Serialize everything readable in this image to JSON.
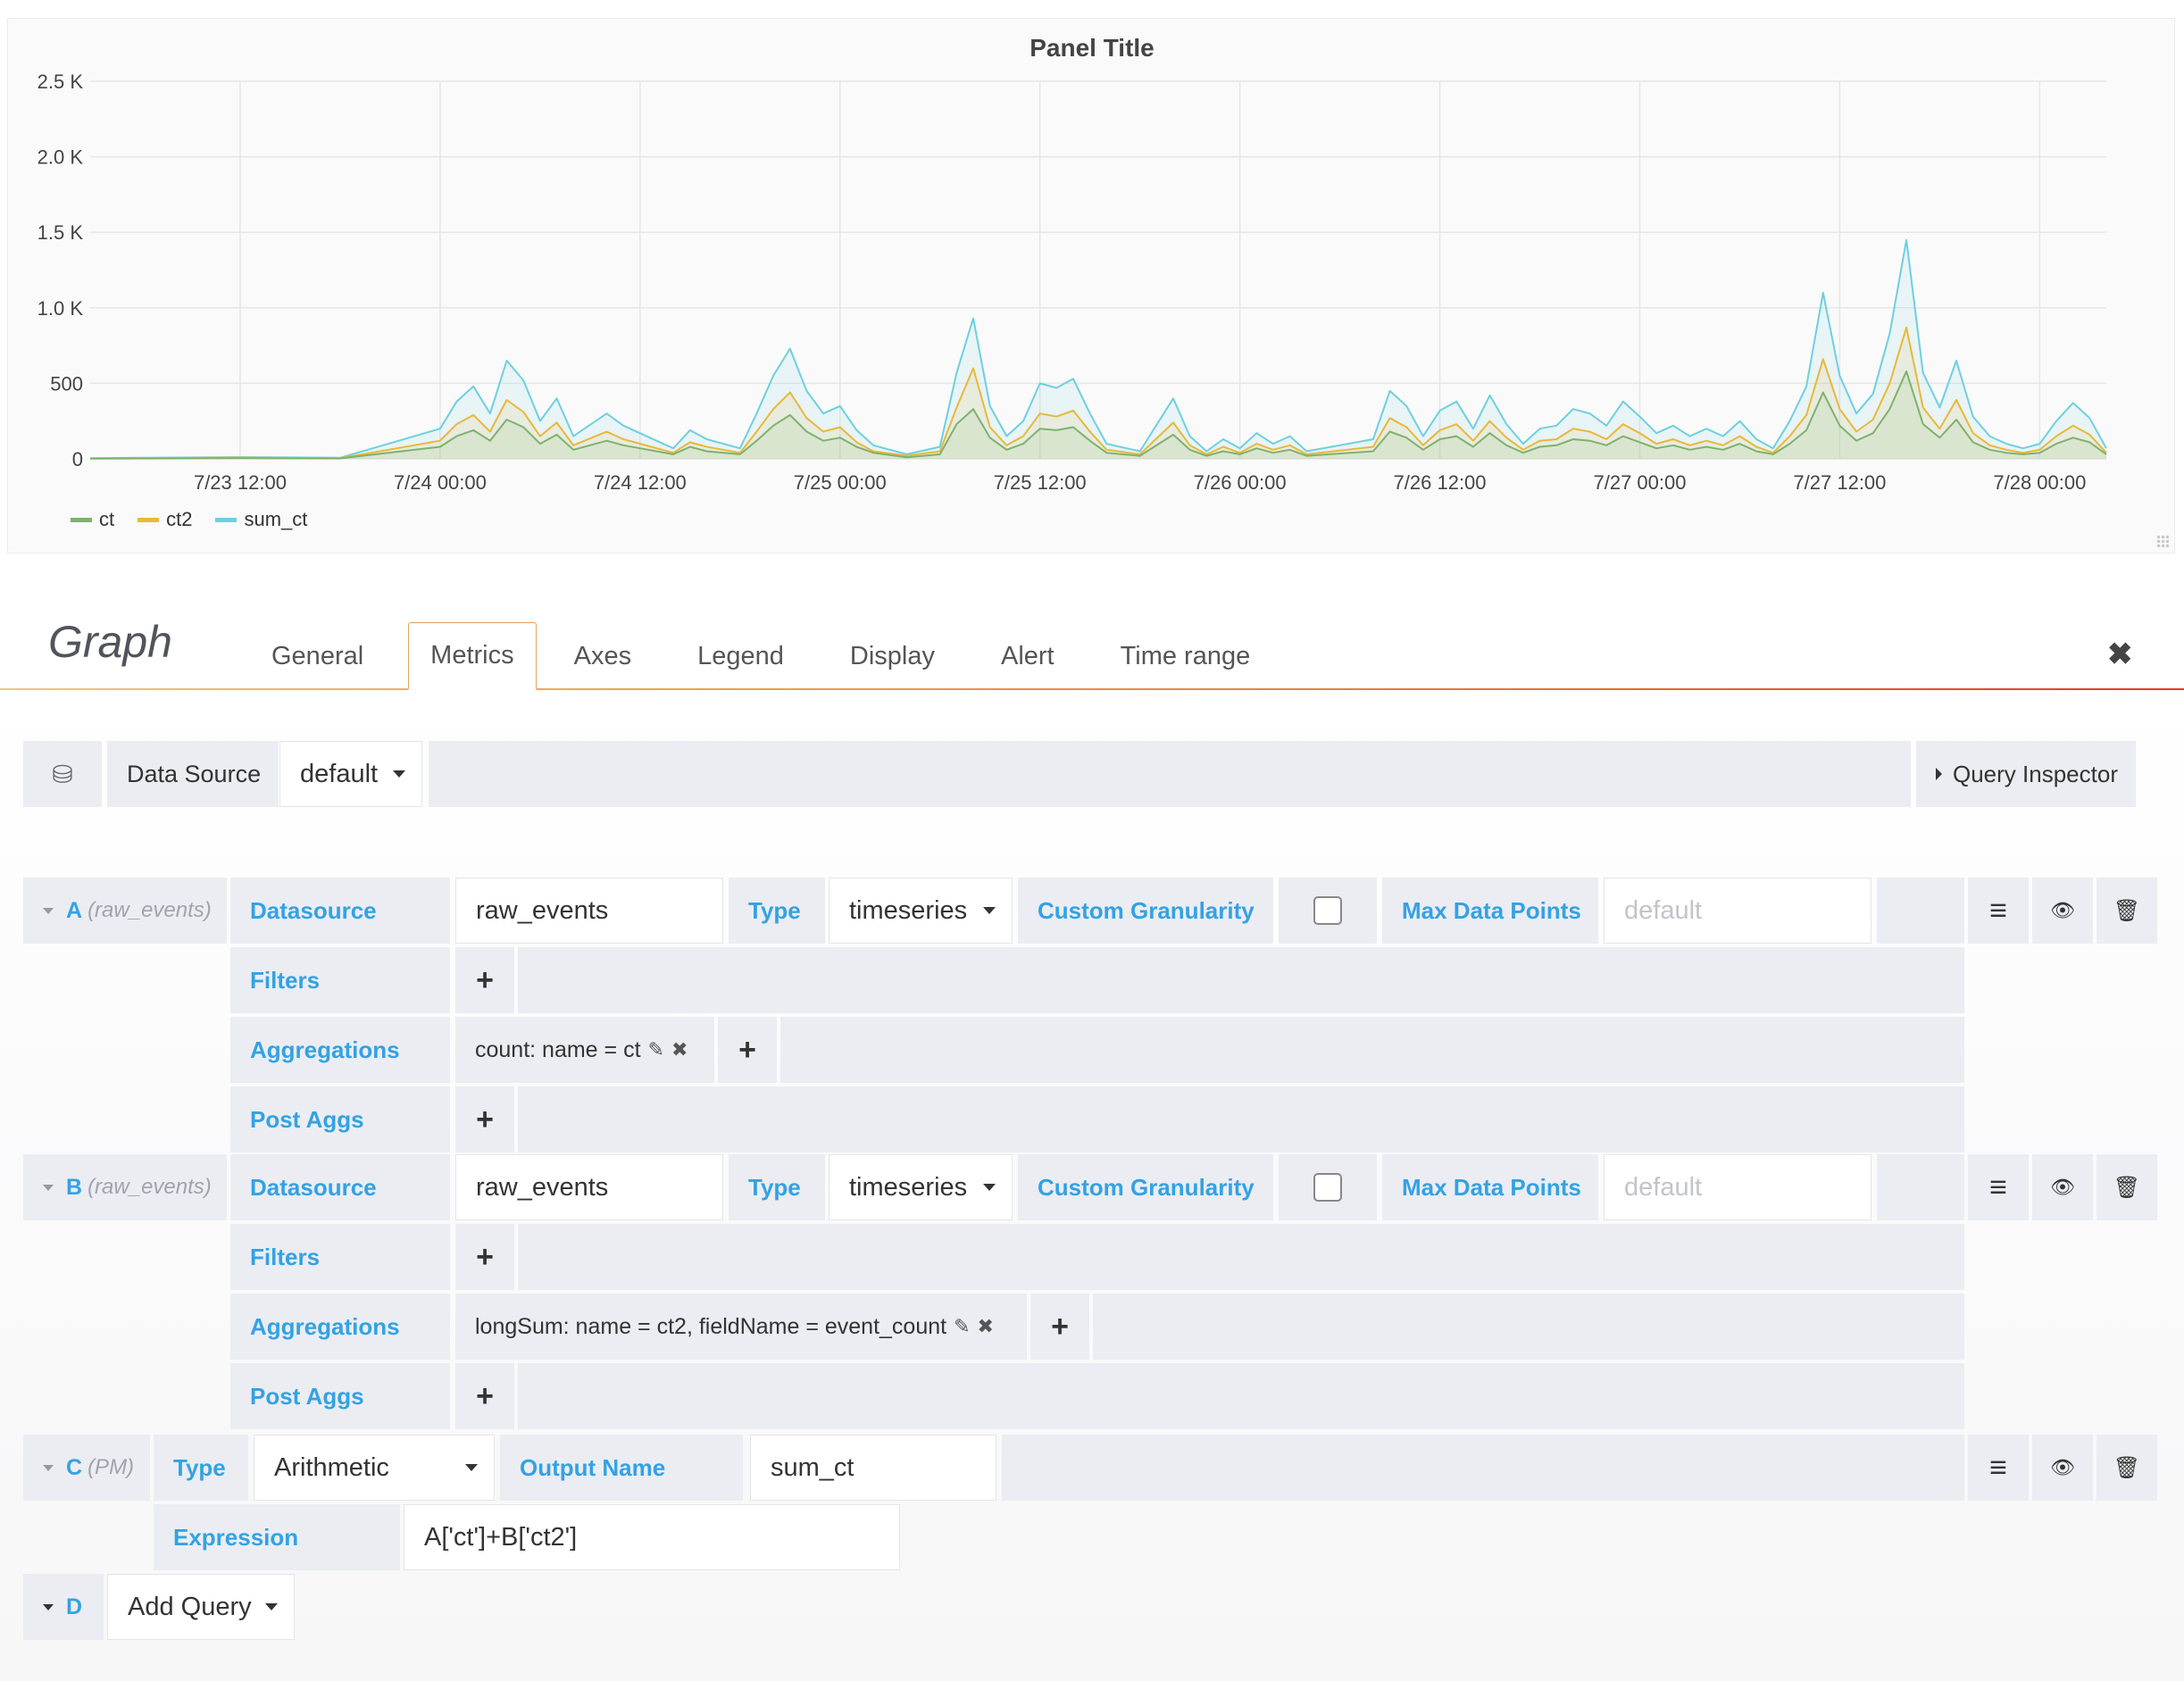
{
  "chart_data": {
    "type": "line",
    "title": "Panel Title",
    "x_tick_labels": [
      "7/23 12:00",
      "7/24 00:00",
      "7/24 12:00",
      "7/25 00:00",
      "7/25 12:00",
      "7/26 00:00",
      "7/26 12:00",
      "7/27 00:00",
      "7/27 12:00",
      "7/28 00:00"
    ],
    "y_tick_labels": [
      "0",
      "500",
      "1.0 K",
      "1.5 K",
      "2.0 K",
      "2.5 K"
    ],
    "ylim": [
      0,
      2500
    ],
    "grid": true,
    "legend_position": "bottom-left",
    "x_unit": "hours since 7/23 00:00",
    "xlim": [
      3,
      124
    ],
    "series": [
      {
        "name": "ct",
        "color": "#7eb26d",
        "peaks": [
          [
            3,
            2
          ],
          [
            12,
            5
          ],
          [
            18,
            3
          ],
          [
            24,
            80
          ],
          [
            25,
            150
          ],
          [
            26,
            190
          ],
          [
            27,
            120
          ],
          [
            28,
            260
          ],
          [
            29,
            210
          ],
          [
            30,
            100
          ],
          [
            31,
            160
          ],
          [
            32,
            60
          ],
          [
            34,
            120
          ],
          [
            35,
            90
          ],
          [
            38,
            30
          ],
          [
            39,
            80
          ],
          [
            40,
            50
          ],
          [
            42,
            30
          ],
          [
            43,
            120
          ],
          [
            44,
            220
          ],
          [
            45,
            290
          ],
          [
            46,
            180
          ],
          [
            47,
            120
          ],
          [
            48,
            140
          ],
          [
            49,
            80
          ],
          [
            50,
            40
          ],
          [
            52,
            10
          ],
          [
            54,
            30
          ],
          [
            55,
            230
          ],
          [
            56,
            330
          ],
          [
            57,
            140
          ],
          [
            58,
            60
          ],
          [
            59,
            100
          ],
          [
            60,
            200
          ],
          [
            61,
            190
          ],
          [
            62,
            210
          ],
          [
            63,
            120
          ],
          [
            64,
            40
          ],
          [
            66,
            20
          ],
          [
            68,
            160
          ],
          [
            69,
            60
          ],
          [
            70,
            20
          ],
          [
            71,
            50
          ],
          [
            72,
            30
          ],
          [
            73,
            70
          ],
          [
            74,
            40
          ],
          [
            75,
            60
          ],
          [
            76,
            20
          ],
          [
            80,
            50
          ],
          [
            81,
            180
          ],
          [
            82,
            140
          ],
          [
            83,
            60
          ],
          [
            84,
            130
          ],
          [
            85,
            150
          ],
          [
            86,
            80
          ],
          [
            87,
            170
          ],
          [
            88,
            90
          ],
          [
            89,
            40
          ],
          [
            90,
            80
          ],
          [
            91,
            90
          ],
          [
            92,
            130
          ],
          [
            93,
            120
          ],
          [
            94,
            90
          ],
          [
            95,
            150
          ],
          [
            96,
            110
          ],
          [
            97,
            70
          ],
          [
            98,
            90
          ],
          [
            99,
            60
          ],
          [
            100,
            80
          ],
          [
            101,
            60
          ],
          [
            102,
            100
          ],
          [
            103,
            50
          ],
          [
            104,
            30
          ],
          [
            105,
            100
          ],
          [
            106,
            190
          ],
          [
            107,
            440
          ],
          [
            108,
            220
          ],
          [
            109,
            120
          ],
          [
            110,
            170
          ],
          [
            111,
            330
          ],
          [
            112,
            580
          ],
          [
            113,
            230
          ],
          [
            114,
            140
          ],
          [
            115,
            260
          ],
          [
            116,
            110
          ],
          [
            117,
            60
          ],
          [
            118,
            40
          ],
          [
            119,
            30
          ],
          [
            120,
            40
          ],
          [
            121,
            100
          ],
          [
            122,
            140
          ],
          [
            123,
            110
          ],
          [
            124,
            30
          ]
        ]
      },
      {
        "name": "ct2",
        "color": "#eab839",
        "peaks": [
          [
            3,
            3
          ],
          [
            12,
            8
          ],
          [
            18,
            4
          ],
          [
            24,
            120
          ],
          [
            25,
            230
          ],
          [
            26,
            290
          ],
          [
            27,
            180
          ],
          [
            28,
            390
          ],
          [
            29,
            310
          ],
          [
            30,
            150
          ],
          [
            31,
            240
          ],
          [
            32,
            90
          ],
          [
            34,
            180
          ],
          [
            35,
            130
          ],
          [
            38,
            40
          ],
          [
            39,
            110
          ],
          [
            40,
            80
          ],
          [
            42,
            40
          ],
          [
            43,
            180
          ],
          [
            44,
            330
          ],
          [
            45,
            440
          ],
          [
            46,
            270
          ],
          [
            47,
            180
          ],
          [
            48,
            210
          ],
          [
            49,
            110
          ],
          [
            50,
            50
          ],
          [
            52,
            20
          ],
          [
            54,
            50
          ],
          [
            55,
            340
          ],
          [
            56,
            600
          ],
          [
            57,
            210
          ],
          [
            58,
            90
          ],
          [
            59,
            150
          ],
          [
            60,
            300
          ],
          [
            61,
            280
          ],
          [
            62,
            320
          ],
          [
            63,
            180
          ],
          [
            64,
            60
          ],
          [
            66,
            30
          ],
          [
            68,
            240
          ],
          [
            69,
            90
          ],
          [
            70,
            30
          ],
          [
            71,
            80
          ],
          [
            72,
            40
          ],
          [
            73,
            100
          ],
          [
            74,
            60
          ],
          [
            75,
            90
          ],
          [
            76,
            30
          ],
          [
            80,
            80
          ],
          [
            81,
            270
          ],
          [
            82,
            210
          ],
          [
            83,
            90
          ],
          [
            84,
            190
          ],
          [
            85,
            230
          ],
          [
            86,
            120
          ],
          [
            87,
            250
          ],
          [
            88,
            140
          ],
          [
            89,
            60
          ],
          [
            90,
            120
          ],
          [
            91,
            130
          ],
          [
            92,
            200
          ],
          [
            93,
            180
          ],
          [
            94,
            130
          ],
          [
            95,
            230
          ],
          [
            96,
            170
          ],
          [
            97,
            100
          ],
          [
            98,
            130
          ],
          [
            99,
            90
          ],
          [
            100,
            120
          ],
          [
            101,
            90
          ],
          [
            102,
            150
          ],
          [
            103,
            80
          ],
          [
            104,
            40
          ],
          [
            105,
            150
          ],
          [
            106,
            290
          ],
          [
            107,
            660
          ],
          [
            108,
            330
          ],
          [
            109,
            180
          ],
          [
            110,
            260
          ],
          [
            111,
            500
          ],
          [
            112,
            870
          ],
          [
            113,
            340
          ],
          [
            114,
            200
          ],
          [
            115,
            390
          ],
          [
            116,
            170
          ],
          [
            117,
            90
          ],
          [
            118,
            60
          ],
          [
            119,
            40
          ],
          [
            120,
            60
          ],
          [
            121,
            150
          ],
          [
            122,
            220
          ],
          [
            123,
            160
          ],
          [
            124,
            40
          ]
        ]
      },
      {
        "name": "sum_ct",
        "color": "#6ed0e0",
        "peaks": [
          [
            3,
            5
          ],
          [
            12,
            12
          ],
          [
            18,
            7
          ],
          [
            24,
            200
          ],
          [
            25,
            380
          ],
          [
            26,
            480
          ],
          [
            27,
            300
          ],
          [
            28,
            650
          ],
          [
            29,
            520
          ],
          [
            30,
            250
          ],
          [
            31,
            400
          ],
          [
            32,
            150
          ],
          [
            34,
            300
          ],
          [
            35,
            220
          ],
          [
            38,
            70
          ],
          [
            39,
            190
          ],
          [
            40,
            130
          ],
          [
            42,
            70
          ],
          [
            43,
            300
          ],
          [
            44,
            550
          ],
          [
            45,
            730
          ],
          [
            46,
            450
          ],
          [
            47,
            300
          ],
          [
            48,
            350
          ],
          [
            49,
            190
          ],
          [
            50,
            90
          ],
          [
            52,
            30
          ],
          [
            54,
            80
          ],
          [
            55,
            570
          ],
          [
            56,
            930
          ],
          [
            57,
            350
          ],
          [
            58,
            150
          ],
          [
            59,
            250
          ],
          [
            60,
            500
          ],
          [
            61,
            470
          ],
          [
            62,
            530
          ],
          [
            63,
            300
          ],
          [
            64,
            100
          ],
          [
            66,
            50
          ],
          [
            68,
            400
          ],
          [
            69,
            150
          ],
          [
            70,
            50
          ],
          [
            71,
            130
          ],
          [
            72,
            70
          ],
          [
            73,
            170
          ],
          [
            74,
            100
          ],
          [
            75,
            150
          ],
          [
            76,
            50
          ],
          [
            80,
            130
          ],
          [
            81,
            450
          ],
          [
            82,
            350
          ],
          [
            83,
            150
          ],
          [
            84,
            320
          ],
          [
            85,
            380
          ],
          [
            86,
            200
          ],
          [
            87,
            420
          ],
          [
            88,
            230
          ],
          [
            89,
            100
          ],
          [
            90,
            200
          ],
          [
            91,
            220
          ],
          [
            92,
            330
          ],
          [
            93,
            300
          ],
          [
            94,
            220
          ],
          [
            95,
            380
          ],
          [
            96,
            280
          ],
          [
            97,
            170
          ],
          [
            98,
            220
          ],
          [
            99,
            150
          ],
          [
            100,
            200
          ],
          [
            101,
            150
          ],
          [
            102,
            250
          ],
          [
            103,
            130
          ],
          [
            104,
            70
          ],
          [
            105,
            250
          ],
          [
            106,
            480
          ],
          [
            107,
            1100
          ],
          [
            108,
            550
          ],
          [
            109,
            300
          ],
          [
            110,
            430
          ],
          [
            111,
            830
          ],
          [
            112,
            1450
          ],
          [
            113,
            570
          ],
          [
            114,
            340
          ],
          [
            115,
            650
          ],
          [
            116,
            280
          ],
          [
            117,
            150
          ],
          [
            118,
            100
          ],
          [
            119,
            70
          ],
          [
            120,
            100
          ],
          [
            121,
            250
          ],
          [
            122,
            370
          ],
          [
            123,
            270
          ],
          [
            124,
            70
          ]
        ]
      }
    ]
  },
  "editor": {
    "title": "Graph",
    "tabs": [
      "General",
      "Metrics",
      "Axes",
      "Legend",
      "Display",
      "Alert",
      "Time range"
    ],
    "active_tab": "Metrics",
    "datasource_label": "Data Source",
    "datasource_value": "default",
    "query_inspector": "Query Inspector"
  },
  "queries": {
    "A": {
      "letter": "A",
      "sub": "(raw_events)",
      "datasource_label": "Datasource",
      "datasource_value": "raw_events",
      "type_label": "Type",
      "type_value": "timeseries",
      "granularity_label": "Custom Granularity",
      "maxpoints_label": "Max Data Points",
      "maxpoints_placeholder": "default",
      "filters_label": "Filters",
      "aggregations_label": "Aggregations",
      "aggregation_value": "count: name = ct",
      "postaggs_label": "Post Aggs"
    },
    "B": {
      "letter": "B",
      "sub": "(raw_events)",
      "datasource_label": "Datasource",
      "datasource_value": "raw_events",
      "type_label": "Type",
      "type_value": "timeseries",
      "granularity_label": "Custom Granularity",
      "maxpoints_label": "Max Data Points",
      "maxpoints_placeholder": "default",
      "filters_label": "Filters",
      "aggregations_label": "Aggregations",
      "aggregation_value": "longSum: name = ct2, fieldName = event_count",
      "postaggs_label": "Post Aggs"
    },
    "C": {
      "letter": "C",
      "sub": "(PM)",
      "type_label": "Type",
      "type_value": "Arithmetic",
      "output_label": "Output Name",
      "output_value": "sum_ct",
      "expression_label": "Expression",
      "expression_value": "A['ct']+B['ct2']"
    },
    "D": {
      "letter": "D",
      "add_query": "Add Query"
    }
  },
  "icons": {
    "plus": "+",
    "menu": "≡",
    "eye": "👁",
    "trash": "🗑",
    "pencil": "✎",
    "remove": "✖",
    "close": "✖",
    "database": "⛁"
  }
}
